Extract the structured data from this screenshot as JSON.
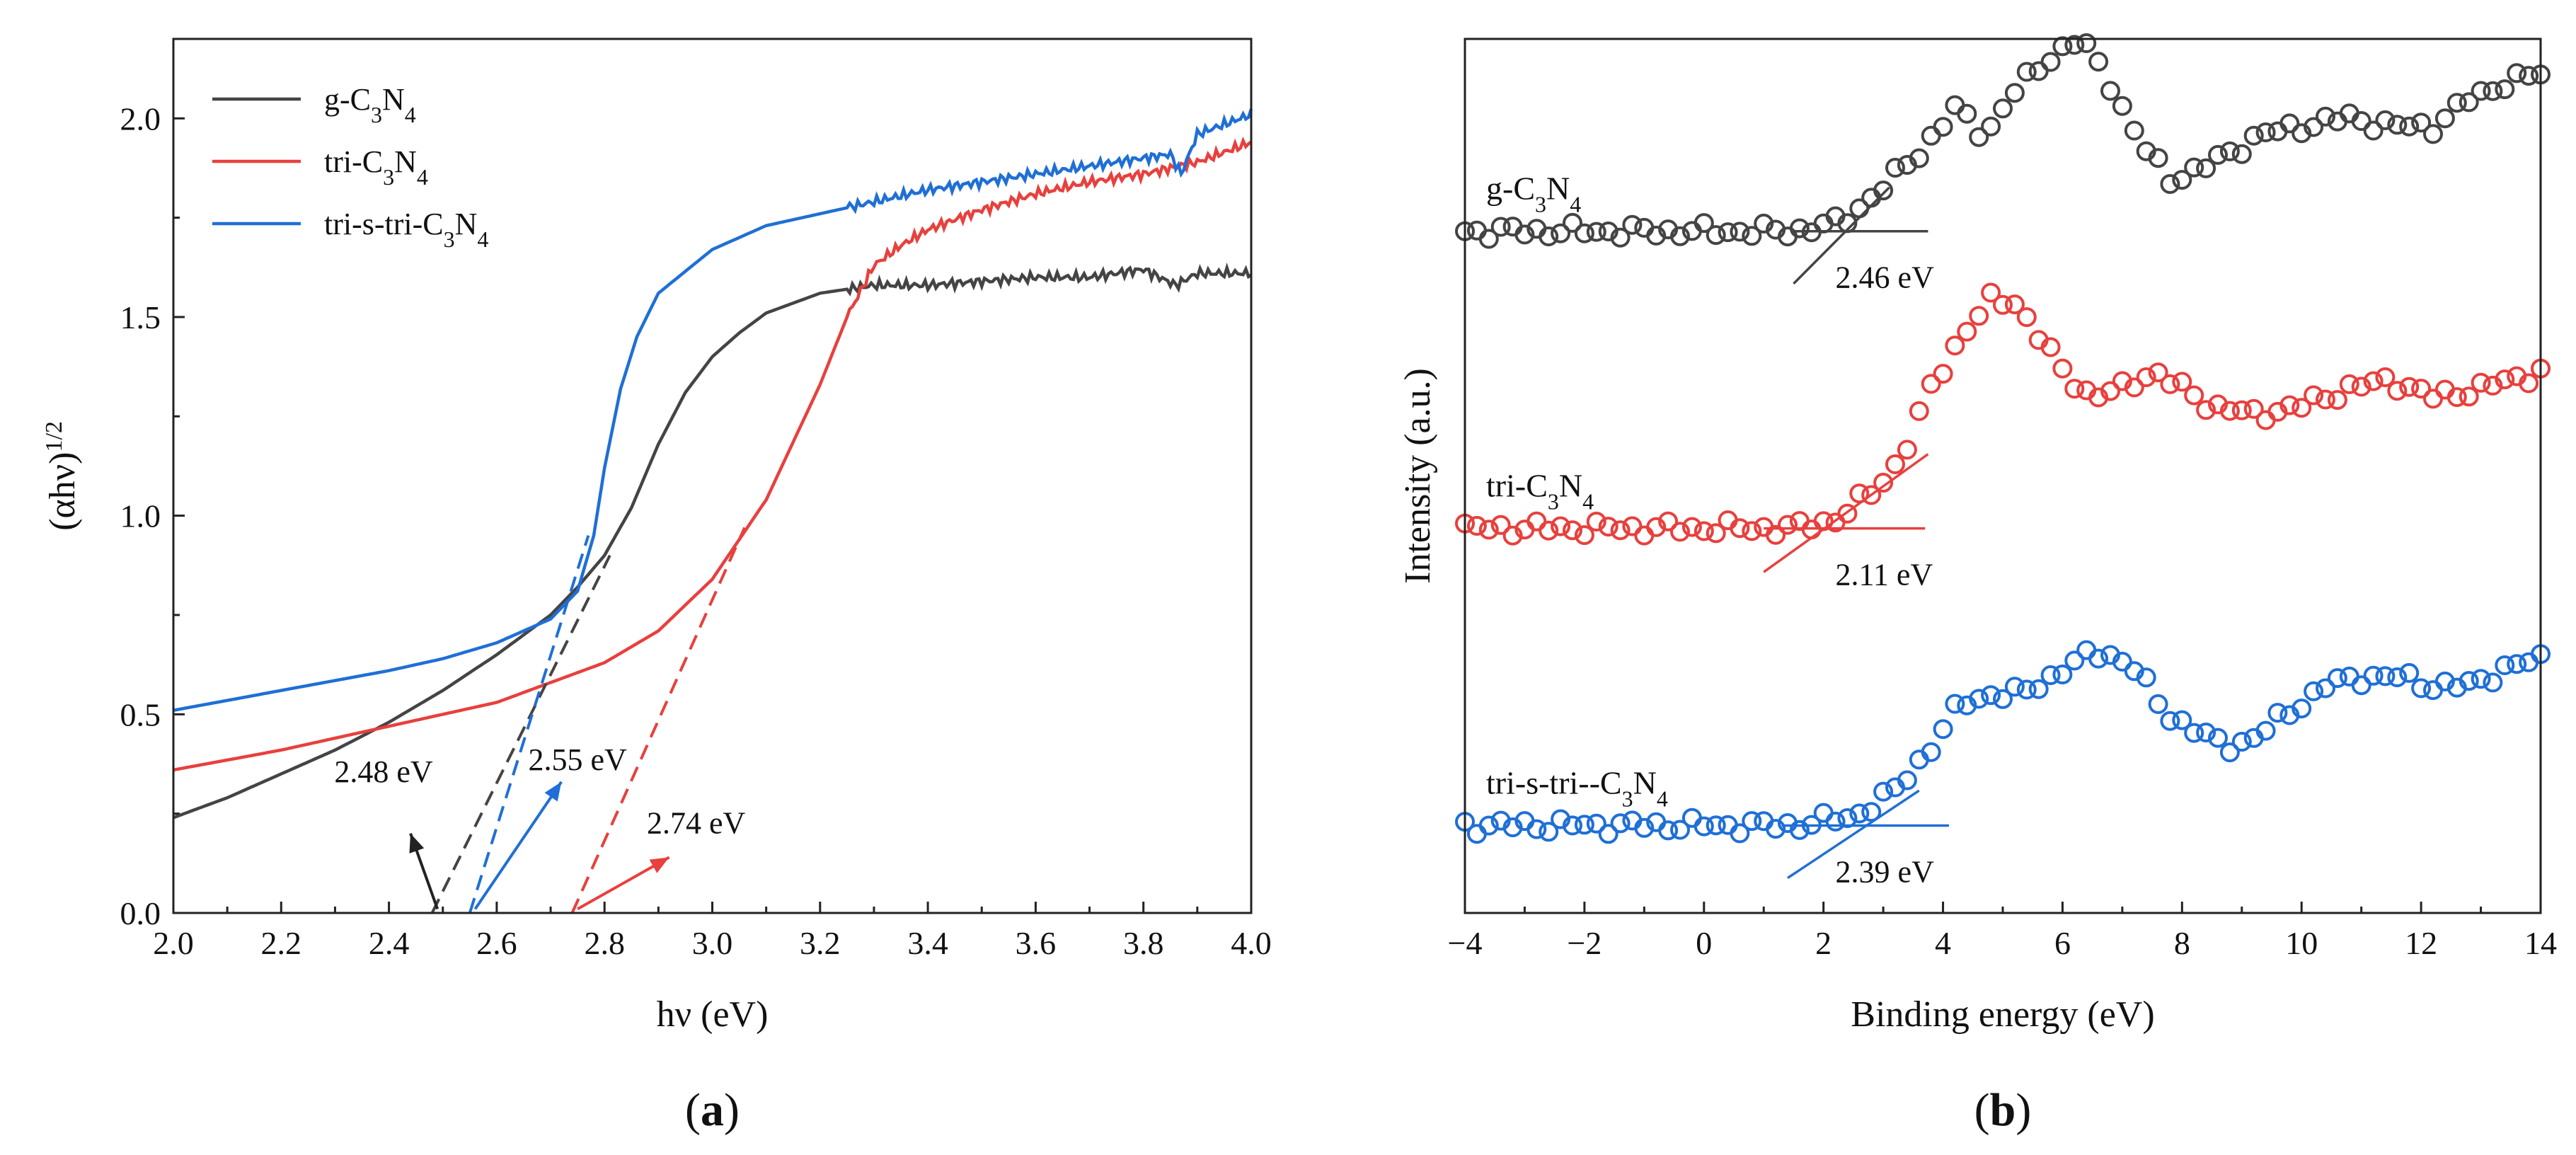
{
  "chart_data": [
    {
      "panel": "a",
      "panel_label_open": "(",
      "panel_label": "a",
      "panel_label_close": ")",
      "type": "line",
      "xlabel": "hν (eV)",
      "ylabel": "(αhν)",
      "ylabel_sup": "1/2",
      "xlim": [
        2.0,
        4.0
      ],
      "ylim": [
        0.0,
        2.2
      ],
      "xticks": [
        "2.0",
        "2.2",
        "2.4",
        "2.6",
        "2.8",
        "3.0",
        "3.2",
        "3.4",
        "3.6",
        "3.8",
        "4.0"
      ],
      "yticks": [
        "0.0",
        "0.5",
        "1.0",
        "1.5",
        "2.0"
      ],
      "legend_position": "top-left",
      "series": [
        {
          "name": "g-C3N4",
          "legend": {
            "pre": "g-C",
            "sub1": "3",
            "mid": "N",
            "sub2": "4"
          },
          "color": "#444444",
          "x": [
            2.0,
            2.1,
            2.2,
            2.3,
            2.4,
            2.5,
            2.6,
            2.7,
            2.75,
            2.8,
            2.85,
            2.9,
            2.95,
            3.0,
            3.05,
            3.1,
            3.2,
            3.3,
            3.4,
            3.5,
            3.6,
            3.7,
            3.8,
            3.86,
            3.9,
            4.0
          ],
          "y": [
            0.24,
            0.29,
            0.35,
            0.41,
            0.48,
            0.56,
            0.65,
            0.75,
            0.82,
            0.9,
            1.02,
            1.18,
            1.31,
            1.4,
            1.46,
            1.51,
            1.56,
            1.58,
            1.58,
            1.59,
            1.6,
            1.6,
            1.62,
            1.58,
            1.61,
            1.61
          ]
        },
        {
          "name": "tri-C3N4",
          "legend": {
            "pre": "tri-C",
            "sub1": "3",
            "mid": "N",
            "sub2": "4"
          },
          "color": "#e8403d",
          "x": [
            2.0,
            2.2,
            2.4,
            2.6,
            2.7,
            2.8,
            2.9,
            3.0,
            3.1,
            3.2,
            3.25,
            3.3,
            3.35,
            3.4,
            3.5,
            3.6,
            3.7,
            3.8,
            3.9,
            4.0
          ],
          "y": [
            0.36,
            0.41,
            0.47,
            0.53,
            0.58,
            0.63,
            0.71,
            0.84,
            1.04,
            1.33,
            1.5,
            1.63,
            1.68,
            1.72,
            1.77,
            1.81,
            1.84,
            1.86,
            1.89,
            1.94
          ]
        },
        {
          "name": "tri-s-tri-C3N4",
          "legend": {
            "pre": "tri-s-tri-C",
            "sub1": "3",
            "mid": "N",
            "sub2": "4"
          },
          "color": "#1f6fd6",
          "x": [
            2.0,
            2.2,
            2.4,
            2.5,
            2.6,
            2.7,
            2.75,
            2.78,
            2.8,
            2.83,
            2.86,
            2.9,
            3.0,
            3.1,
            3.2,
            3.3,
            3.4,
            3.5,
            3.6,
            3.7,
            3.8,
            3.85,
            3.87,
            3.9,
            4.0
          ],
          "y": [
            0.51,
            0.56,
            0.61,
            0.64,
            0.68,
            0.74,
            0.81,
            0.95,
            1.12,
            1.32,
            1.45,
            1.56,
            1.67,
            1.73,
            1.76,
            1.79,
            1.82,
            1.84,
            1.86,
            1.88,
            1.9,
            1.91,
            1.86,
            1.96,
            2.01
          ]
        }
      ],
      "tangent_lines": [
        {
          "series": "g-C3N4",
          "color": "#444444",
          "x": [
            2.48,
            2.81
          ],
          "y": [
            0.0,
            0.9
          ]
        },
        {
          "series": "tri-s-tri-C3N4",
          "color": "#1f6fd6",
          "x": [
            2.55,
            2.77
          ],
          "y": [
            0.0,
            0.95
          ]
        },
        {
          "series": "tri-C3N4",
          "color": "#e8403d",
          "x": [
            2.74,
            3.06
          ],
          "y": [
            0.0,
            0.97
          ]
        }
      ],
      "annotations": [
        {
          "text": "2.48 eV",
          "color": "#222222",
          "x": 2.39,
          "y": 0.33,
          "arrow_from": [
            2.49,
            0.01
          ],
          "arrow_to": [
            2.44,
            0.2
          ]
        },
        {
          "text": "2.55 eV",
          "color": "#1f6fd6",
          "x": 2.75,
          "y": 0.36,
          "arrow_from": [
            2.56,
            0.01
          ],
          "arrow_to": [
            2.72,
            0.33
          ]
        },
        {
          "text": "2.74 eV",
          "color": "#e8403d",
          "x": 2.97,
          "y": 0.2,
          "arrow_from": [
            2.75,
            0.01
          ],
          "arrow_to": [
            2.92,
            0.14
          ]
        }
      ]
    },
    {
      "panel": "b",
      "panel_label_open": "(",
      "panel_label": "b",
      "panel_label_close": ")",
      "type": "scatter",
      "xlabel": "Binding energy (eV)",
      "ylabel": "Intensity (a.u.)",
      "xlim": [
        -4,
        14
      ],
      "ylim": [
        0,
        1
      ],
      "xticks": [
        "−4",
        "−2",
        "0",
        "2",
        "4",
        "6",
        "8",
        "10",
        "12",
        "14"
      ],
      "series": [
        {
          "name": "g-C3N4",
          "label": {
            "pre": "g-C",
            "sub1": "3",
            "mid": "N",
            "sub2": "4"
          },
          "color": "#444444",
          "x": [
            -4,
            1.5,
            2.3,
            3,
            3.6,
            4.2,
            4.7,
            5.2,
            5.8,
            6.3,
            6.8,
            7.3,
            7.8,
            8.3,
            8.8,
            9.3,
            10,
            10.8,
            11.5,
            12.2,
            12.8,
            13.4,
            14
          ],
          "y": [
            0.78,
            0.78,
            0.79,
            0.83,
            0.87,
            0.92,
            0.89,
            0.94,
            0.98,
            1.0,
            0.95,
            0.88,
            0.84,
            0.85,
            0.87,
            0.89,
            0.9,
            0.91,
            0.9,
            0.9,
            0.93,
            0.95,
            0.96
          ]
        },
        {
          "name": "tri-C3N4",
          "label": {
            "pre": "tri-C",
            "sub1": "3",
            "mid": "N",
            "sub2": "4"
          },
          "color": "#e8403d",
          "x": [
            -4,
            1.5,
            2.2,
            2.8,
            3.3,
            3.8,
            4.3,
            4.8,
            5.2,
            5.6,
            6,
            6.5,
            7,
            7.5,
            8,
            8.5,
            9.2,
            10,
            10.8,
            11.5,
            12.2,
            13,
            14
          ],
          "y": [
            0.44,
            0.44,
            0.45,
            0.48,
            0.52,
            0.6,
            0.66,
            0.7,
            0.7,
            0.66,
            0.62,
            0.59,
            0.6,
            0.62,
            0.6,
            0.58,
            0.57,
            0.58,
            0.6,
            0.61,
            0.59,
            0.6,
            0.62
          ]
        },
        {
          "name": "tri-s-tri--C3N4",
          "label": {
            "pre": "tri-s-tri--C",
            "sub1": "3",
            "mid": "N",
            "sub2": "4"
          },
          "color": "#1f6fd6",
          "x": [
            -4,
            1.5,
            2.5,
            3.2,
            3.8,
            4.3,
            4.8,
            5.3,
            5.8,
            6.3,
            6.7,
            7.2,
            7.7,
            8.2,
            8.7,
            9.2,
            9.8,
            10.4,
            11,
            11.6,
            12.2,
            12.8,
            13.4,
            14
          ],
          "y": [
            0.1,
            0.1,
            0.11,
            0.14,
            0.19,
            0.24,
            0.25,
            0.25,
            0.27,
            0.29,
            0.3,
            0.28,
            0.23,
            0.21,
            0.19,
            0.2,
            0.23,
            0.26,
            0.27,
            0.27,
            0.26,
            0.26,
            0.28,
            0.29
          ]
        }
      ],
      "baselines": [
        {
          "series": "g-C3N4",
          "color": "#444444",
          "text": "2.46 eV",
          "baseline_y": 0.78,
          "baseline_x": [
            1.5,
            3.75
          ],
          "tangent_x": [
            1.5,
            3.1
          ],
          "tangent_y": [
            0.72,
            0.83
          ]
        },
        {
          "series": "tri-C3N4",
          "color": "#e8403d",
          "text": "2.11 eV",
          "baseline_y": 0.44,
          "baseline_x": [
            1.0,
            3.7
          ],
          "tangent_x": [
            1.0,
            3.75
          ],
          "tangent_y": [
            0.39,
            0.525
          ]
        },
        {
          "series": "tri-s-tri--C3N4",
          "color": "#1f6fd6",
          "text": "2.39 eV",
          "baseline_y": 0.1,
          "baseline_x": [
            1.3,
            4.1
          ],
          "tangent_x": [
            1.4,
            3.6
          ],
          "tangent_y": [
            0.04,
            0.14
          ]
        }
      ]
    }
  ]
}
